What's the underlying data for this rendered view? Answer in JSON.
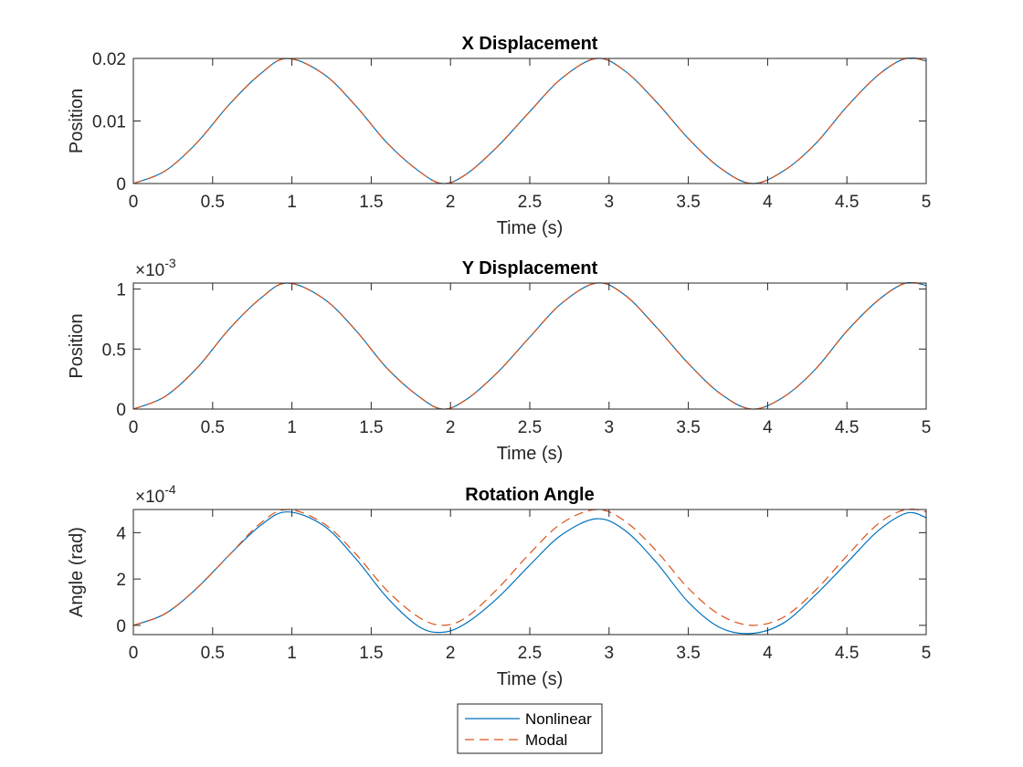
{
  "colors": {
    "nonlinear": "#0072BD",
    "modal": "#D95319",
    "axes": "#262626",
    "background": "#ffffff"
  },
  "legend": {
    "placement": "bottom-center, below plots",
    "entries": [
      "Nonlinear",
      "Modal"
    ]
  },
  "chart_data": [
    {
      "type": "line",
      "title": "X Displacement",
      "xlabel": "Time (s)",
      "ylabel": "Position",
      "exponent_label": "",
      "xlim": [
        0,
        5
      ],
      "ylim": [
        0,
        0.02
      ],
      "xticks": [
        "0",
        "0.5",
        "1",
        "1.5",
        "2",
        "2.5",
        "3",
        "3.5",
        "4",
        "4.5",
        "5"
      ],
      "yticks": [
        "0",
        "0.01",
        "0.02"
      ],
      "grid": false,
      "series": [
        {
          "name": "Nonlinear",
          "style": "solid",
          "x": [
            0,
            0.2,
            0.4,
            0.6,
            0.8,
            0.97,
            1.2,
            1.4,
            1.6,
            1.8,
            1.95,
            2.1,
            2.3,
            2.5,
            2.7,
            2.92,
            3.1,
            3.3,
            3.5,
            3.7,
            3.9,
            4.1,
            4.3,
            4.5,
            4.7,
            4.87,
            5.0
          ],
          "y": [
            0,
            0.002,
            0.0065,
            0.0125,
            0.0175,
            0.02,
            0.0175,
            0.0125,
            0.0065,
            0.002,
            0,
            0.0015,
            0.006,
            0.0115,
            0.0168,
            0.02,
            0.018,
            0.013,
            0.0072,
            0.0025,
            0,
            0.002,
            0.0063,
            0.0123,
            0.0174,
            0.02,
            0.0196
          ]
        },
        {
          "name": "Modal",
          "style": "dashed",
          "x": [
            0,
            0.2,
            0.4,
            0.6,
            0.8,
            0.97,
            1.2,
            1.4,
            1.6,
            1.8,
            1.95,
            2.1,
            2.3,
            2.5,
            2.7,
            2.92,
            3.1,
            3.3,
            3.5,
            3.7,
            3.9,
            4.1,
            4.3,
            4.5,
            4.7,
            4.87,
            5.0
          ],
          "y": [
            0,
            0.002,
            0.0065,
            0.0125,
            0.0175,
            0.02,
            0.0175,
            0.0125,
            0.0065,
            0.002,
            0,
            0.0015,
            0.006,
            0.0115,
            0.0168,
            0.02,
            0.018,
            0.013,
            0.0072,
            0.0025,
            0,
            0.002,
            0.0063,
            0.0123,
            0.0174,
            0.02,
            0.0196
          ]
        }
      ]
    },
    {
      "type": "line",
      "title": "Y Displacement",
      "xlabel": "Time (s)",
      "ylabel": "Position",
      "exponent_label": "×10",
      "exponent_power": "-3",
      "xlim": [
        0,
        5
      ],
      "ylim": [
        0,
        1.05
      ],
      "xticks": [
        "0",
        "0.5",
        "1",
        "1.5",
        "2",
        "2.5",
        "3",
        "3.5",
        "4",
        "4.5",
        "5"
      ],
      "yticks": [
        "0",
        "0.5",
        "1"
      ],
      "grid": false,
      "series": [
        {
          "name": "Nonlinear",
          "style": "solid",
          "x": [
            0,
            0.2,
            0.4,
            0.6,
            0.8,
            0.97,
            1.2,
            1.4,
            1.6,
            1.8,
            1.95,
            2.1,
            2.3,
            2.5,
            2.7,
            2.92,
            3.1,
            3.3,
            3.5,
            3.7,
            3.9,
            4.1,
            4.3,
            4.5,
            4.7,
            4.87,
            5.0
          ],
          "y": [
            0,
            0.105,
            0.34,
            0.66,
            0.92,
            1.05,
            0.92,
            0.66,
            0.34,
            0.105,
            0,
            0.08,
            0.31,
            0.6,
            0.88,
            1.05,
            0.95,
            0.68,
            0.38,
            0.13,
            0,
            0.1,
            0.33,
            0.65,
            0.91,
            1.05,
            1.03
          ]
        },
        {
          "name": "Modal",
          "style": "dashed",
          "x": [
            0,
            0.2,
            0.4,
            0.6,
            0.8,
            0.97,
            1.2,
            1.4,
            1.6,
            1.8,
            1.95,
            2.1,
            2.3,
            2.5,
            2.7,
            2.92,
            3.1,
            3.3,
            3.5,
            3.7,
            3.9,
            4.1,
            4.3,
            4.5,
            4.7,
            4.87,
            5.0
          ],
          "y": [
            0,
            0.105,
            0.34,
            0.66,
            0.92,
            1.05,
            0.92,
            0.66,
            0.34,
            0.105,
            0,
            0.08,
            0.31,
            0.6,
            0.88,
            1.05,
            0.95,
            0.68,
            0.38,
            0.13,
            0,
            0.1,
            0.33,
            0.65,
            0.91,
            1.05,
            1.03
          ]
        }
      ]
    },
    {
      "type": "line",
      "title": "Rotation Angle",
      "xlabel": "Time (s)",
      "ylabel": "Angle (rad)",
      "exponent_label": "×10",
      "exponent_power": "-4",
      "xlim": [
        0,
        5
      ],
      "ylim": [
        -0.4,
        5
      ],
      "xticks": [
        "0",
        "0.5",
        "1",
        "1.5",
        "2",
        "2.5",
        "3",
        "3.5",
        "4",
        "4.5",
        "5"
      ],
      "yticks": [
        "0",
        "2",
        "4"
      ],
      "grid": false,
      "series": [
        {
          "name": "Nonlinear",
          "style": "solid",
          "x": [
            0,
            0.2,
            0.4,
            0.6,
            0.8,
            0.97,
            1.2,
            1.4,
            1.6,
            1.8,
            1.95,
            2.1,
            2.3,
            2.5,
            2.7,
            2.92,
            3.1,
            3.3,
            3.5,
            3.7,
            3.9,
            4.1,
            4.3,
            4.5,
            4.7,
            4.88,
            5.0
          ],
          "y": [
            0,
            0.5,
            1.6,
            3.0,
            4.3,
            4.9,
            4.3,
            2.9,
            1.2,
            -0.05,
            -0.3,
            0.1,
            1.2,
            2.6,
            3.9,
            4.6,
            4.1,
            2.7,
            1.0,
            -0.1,
            -0.35,
            0.1,
            1.3,
            2.7,
            4.1,
            4.85,
            4.65
          ]
        },
        {
          "name": "Modal",
          "style": "dashed",
          "x": [
            0,
            0.2,
            0.4,
            0.6,
            0.8,
            0.97,
            1.2,
            1.4,
            1.6,
            1.8,
            1.95,
            2.1,
            2.3,
            2.5,
            2.7,
            2.92,
            3.1,
            3.3,
            3.5,
            3.7,
            3.9,
            4.1,
            4.3,
            4.5,
            4.7,
            4.87,
            5.0
          ],
          "y": [
            0,
            0.5,
            1.6,
            3.0,
            4.4,
            5.0,
            4.4,
            3.1,
            1.5,
            0.35,
            0,
            0.35,
            1.6,
            3.1,
            4.4,
            5.0,
            4.5,
            3.2,
            1.6,
            0.45,
            0,
            0.35,
            1.5,
            3.0,
            4.4,
            5.0,
            4.9
          ]
        }
      ]
    }
  ]
}
